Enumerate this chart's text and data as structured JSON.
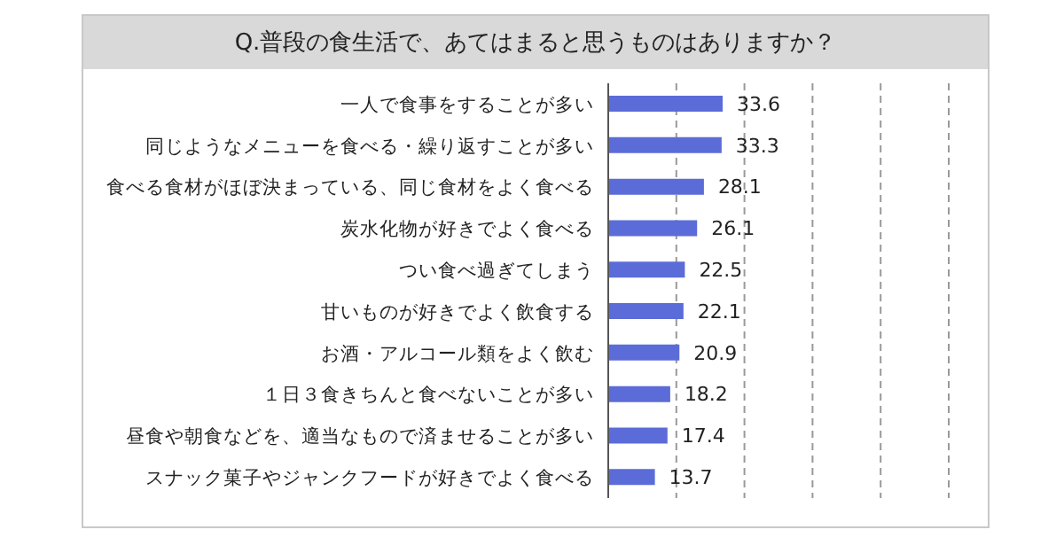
{
  "chart_data": {
    "type": "bar",
    "orientation": "horizontal",
    "title": "Q.普段の食生活で、あてはまると思うものはありますか？",
    "categories": [
      "一人で食事をすることが多い",
      "同じようなメニューを食べる・繰り返すことが多い",
      "食べる食材がほぼ決まっている、同じ食材をよく食べる",
      "炭水化物が好きでよく食べる",
      "つい食べ過ぎてしまう",
      "甘いものが好きでよく飲食する",
      "お酒・アルコール類をよく飲む",
      "１日３食きちんと食べないことが多い",
      "昼食や朝食などを、適当なもので済ませることが多い",
      "スナック菓子やジャンクフードが好きでよく食べる"
    ],
    "values": [
      33.6,
      33.3,
      28.1,
      26.1,
      22.5,
      22.1,
      20.9,
      18.2,
      17.4,
      13.7
    ],
    "color": "#5b6cd8",
    "data_labels": true,
    "grid": "x",
    "xlim": [
      0,
      100
    ],
    "xticks": [
      {
        "value": 0,
        "label": null
      },
      {
        "value": 20,
        "label": null
      },
      {
        "value": 40,
        "label": null
      },
      {
        "value": 60,
        "label": null
      },
      {
        "value": 80,
        "label": null
      },
      {
        "value": 100,
        "label": null
      }
    ]
  }
}
